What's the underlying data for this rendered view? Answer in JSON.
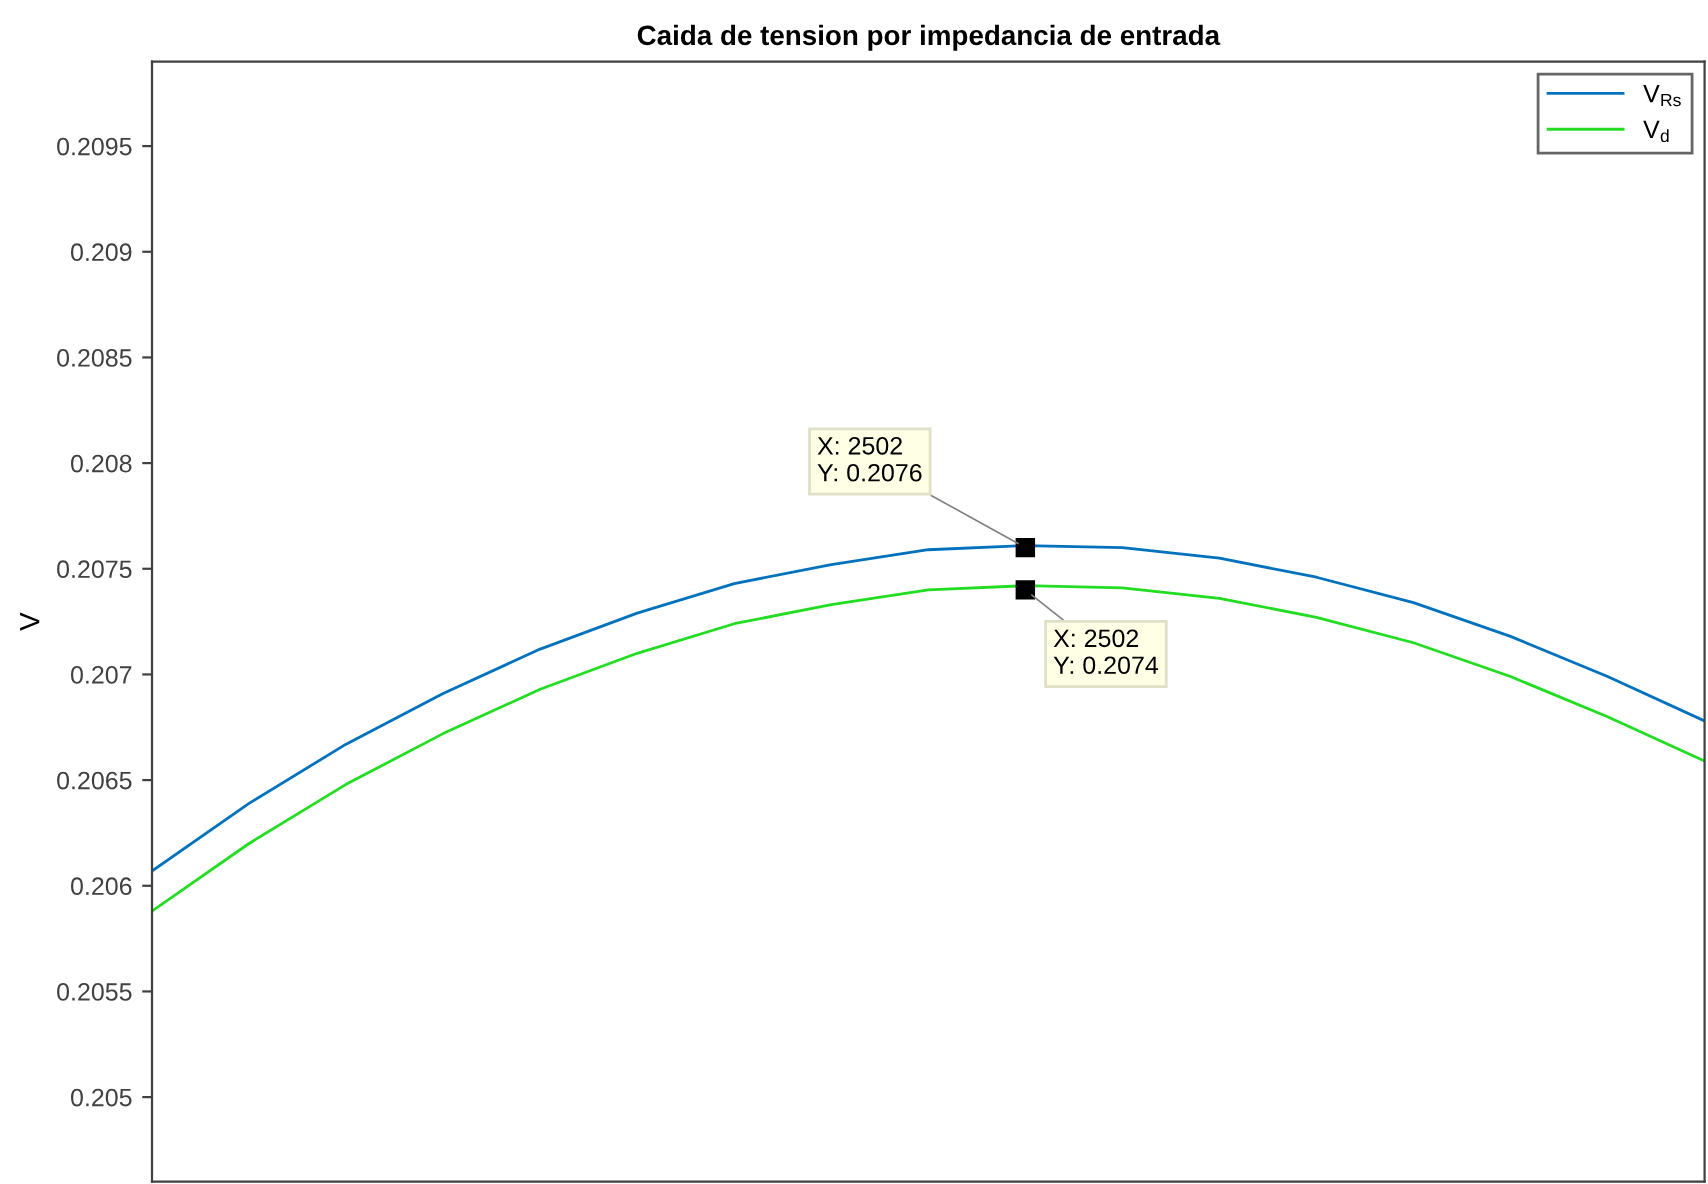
{
  "chart_data": {
    "type": "line",
    "title": "Caida de tension por impedancia de entrada",
    "ylabel": "V",
    "categories": [
      null,
      null,
      null,
      null,
      null,
      null,
      null,
      null,
      null,
      null,
      null,
      null,
      null,
      null,
      null,
      null,
      null
    ],
    "series": [
      {
        "name": "V$_{Rs}$",
        "color": "#0072bd",
        "values": [
          0.20607,
          0.20639,
          0.20667,
          0.20691,
          0.20712,
          0.20729,
          0.20743,
          0.20752,
          0.20759,
          0.20761,
          0.2076,
          0.20755,
          0.20746,
          0.20734,
          0.20718,
          0.20699,
          0.20678
        ]
      },
      {
        "name": "V$_{d}$",
        "color": "#22dd22",
        "values": [
          0.20588,
          0.2062,
          0.20648,
          0.20672,
          0.20693,
          0.2071,
          0.20724,
          0.20733,
          0.2074,
          0.20742,
          0.20741,
          0.20736,
          0.20727,
          0.20715,
          0.20699,
          0.2068,
          0.20659
        ]
      }
    ],
    "annotations": [
      {
        "text": "X: 2502\nY: 0.2076",
        "y": 0.2076
      },
      {
        "text": "X: 2502\nY: 0.2074",
        "y": 0.2074
      }
    ],
    "ylim": [
      0.2046,
      0.2099
    ],
    "yticks": [
      0.205,
      0.2055,
      0.206,
      0.2065,
      0.207,
      0.2075,
      0.208,
      0.2085,
      0.209,
      0.2095
    ],
    "tick_labels": "y",
    "grid": false,
    "legend": "top right",
    "marker": "none",
    "line_style": "solid"
  }
}
